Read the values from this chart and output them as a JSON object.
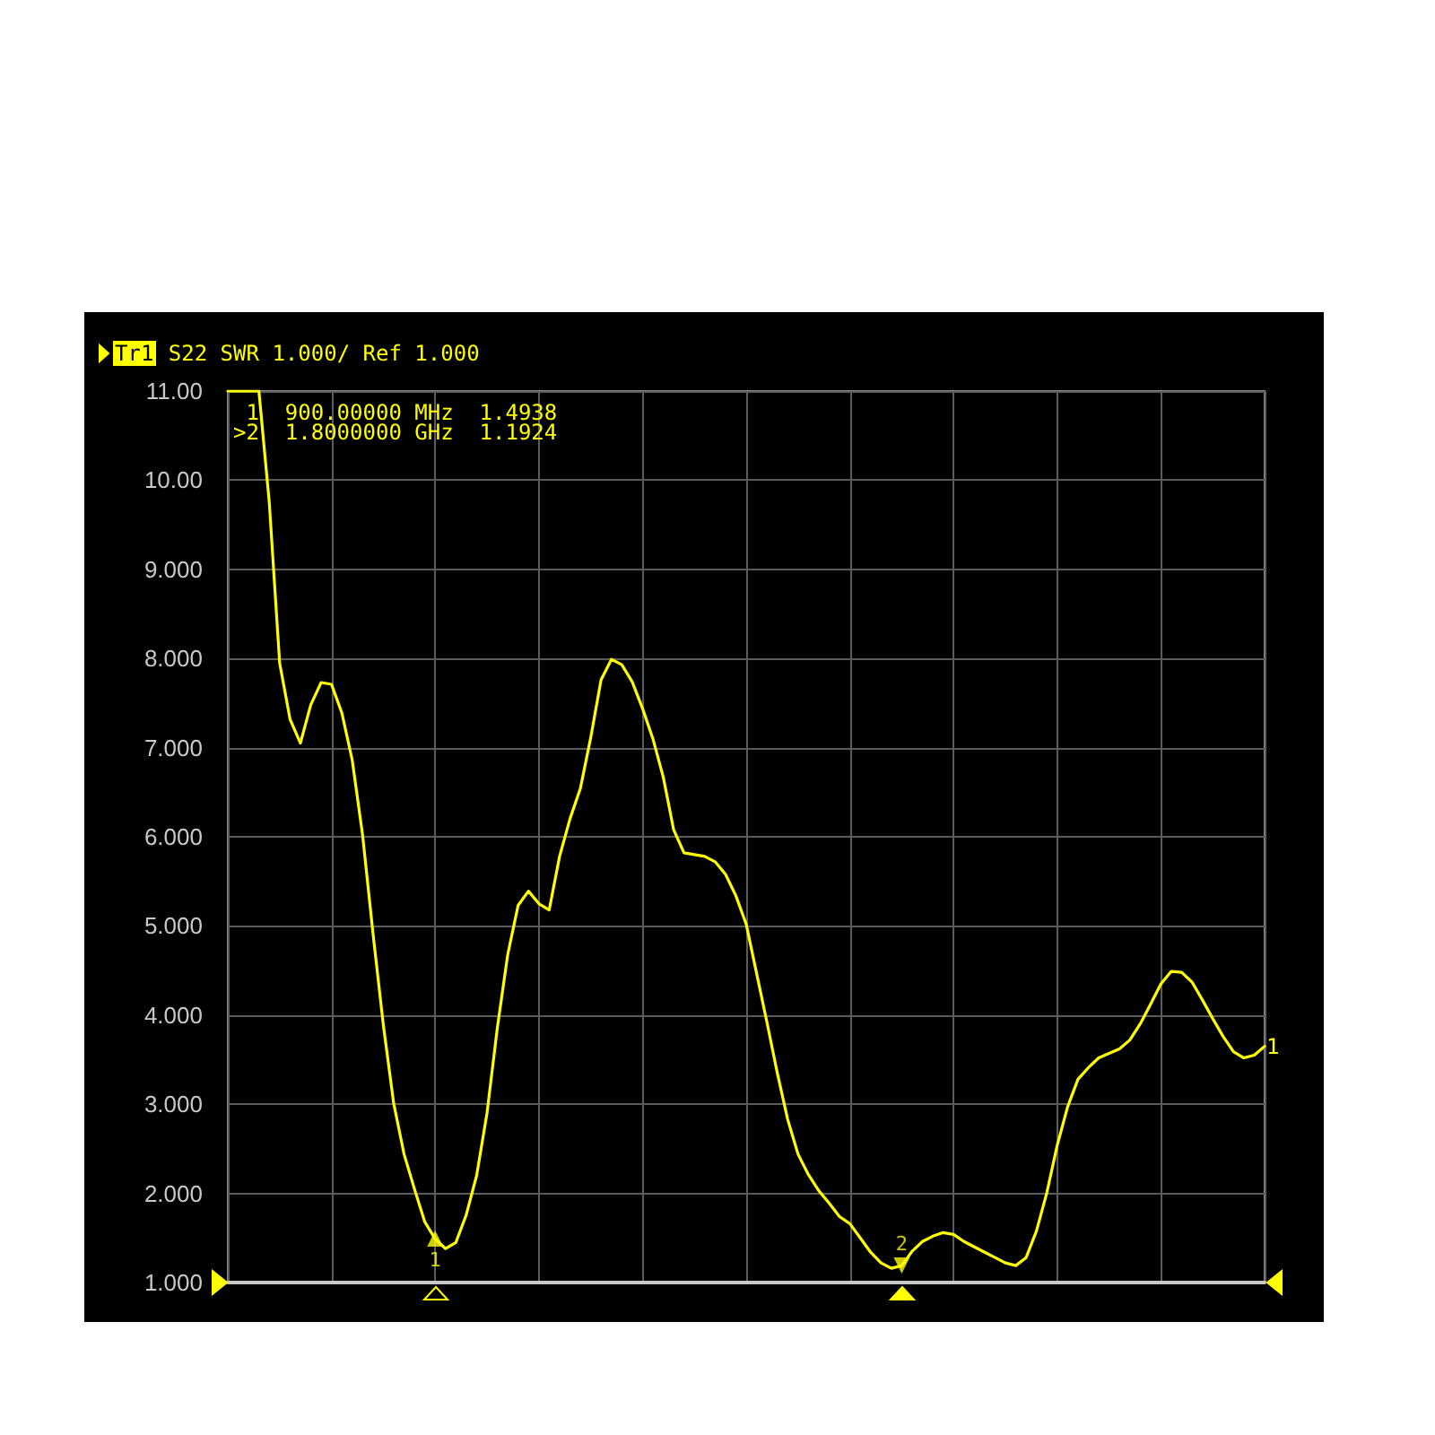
{
  "chart_data": {
    "type": "line",
    "title": "Tr1 S22 SWR 1.000/ Ref 1.000",
    "categories": [
      null,
      null,
      null,
      null,
      null,
      null,
      null,
      null,
      null,
      null,
      null,
      null,
      null,
      null,
      null,
      null,
      null,
      null,
      null,
      null,
      null,
      null,
      null,
      null,
      null,
      null,
      null,
      null,
      null,
      null,
      null,
      null,
      null,
      null,
      null,
      null,
      null,
      null,
      null,
      null,
      null,
      null,
      null,
      null,
      null,
      null,
      null,
      null,
      null,
      null,
      null,
      null,
      null,
      null,
      null,
      null,
      null,
      null,
      null,
      null,
      null,
      null,
      null,
      null,
      null,
      null,
      null,
      null,
      null,
      null,
      null,
      null,
      null,
      null,
      null,
      null,
      null,
      null,
      null,
      null,
      null,
      null,
      null,
      null,
      null,
      null,
      null,
      null,
      null,
      null,
      null,
      null,
      null,
      null,
      null,
      null,
      null,
      null,
      null,
      null,
      null
    ],
    "series": [
      {
        "name": "1",
        "color": "#ffff00",
        "values": [
          11,
          11,
          11,
          11,
          9.75,
          7.95,
          7.32,
          7.05,
          7.48,
          7.73,
          7.71,
          7.39,
          6.86,
          6.02,
          4.92,
          3.89,
          3.01,
          2.44,
          2.05,
          1.68,
          1.49,
          1.38,
          1.45,
          1.76,
          2.2,
          2.9,
          3.86,
          4.68,
          5.23,
          5.39,
          5.25,
          5.18,
          5.78,
          6.2,
          6.54,
          7.11,
          7.76,
          7.99,
          7.93,
          7.74,
          7.44,
          7.1,
          6.67,
          6.08,
          5.82,
          5.8,
          5.78,
          5.72,
          5.58,
          5.34,
          5.02,
          4.47,
          3.92,
          3.35,
          2.83,
          2.44,
          2.21,
          2.03,
          1.89,
          1.74,
          1.66,
          1.5,
          1.34,
          1.22,
          1.16,
          1.19,
          1.35,
          1.46,
          1.52,
          1.56,
          1.54,
          1.46,
          1.4,
          1.34,
          1.28,
          1.22,
          1.19,
          1.28,
          1.58,
          2.01,
          2.54,
          2.97,
          3.28,
          3.41,
          3.52,
          3.57,
          3.62,
          3.72,
          3.9,
          4.12,
          4.35,
          4.49,
          4.48,
          4.37,
          4.17,
          3.96,
          3.76,
          3.59,
          3.52,
          3.55,
          3.65
        ]
      },
      {
        "type": "scatter",
        "name": "1",
        "color": "#ffff00",
        "marker": "triangle",
        "values": [
          null,
          null,
          null,
          null,
          null,
          null,
          null,
          null,
          null,
          null,
          null,
          null,
          null,
          null,
          null,
          null,
          null,
          null,
          null,
          null,
          1.4938,
          null,
          null,
          null,
          null,
          null,
          null,
          null,
          null,
          null,
          null,
          null,
          null,
          null,
          null,
          null,
          null,
          null,
          null,
          null,
          null,
          null,
          null,
          null,
          null,
          null,
          null,
          null,
          null,
          null,
          null,
          null,
          null,
          null,
          null,
          null,
          null,
          null,
          null,
          null,
          null,
          null,
          null,
          null,
          null,
          null,
          null,
          null,
          null,
          null,
          null,
          null,
          null,
          null,
          null,
          null,
          null,
          null,
          null,
          null,
          null,
          null,
          null,
          null,
          null,
          null,
          null,
          null,
          null,
          null,
          null,
          null,
          null,
          null,
          null,
          null,
          null,
          null,
          null,
          null,
          null
        ]
      },
      {
        "type": "scatter",
        "name": "2",
        "color": "#ffff00",
        "marker": "triangle",
        "values": [
          null,
          null,
          null,
          null,
          null,
          null,
          null,
          null,
          null,
          null,
          null,
          null,
          null,
          null,
          null,
          null,
          null,
          null,
          null,
          null,
          null,
          null,
          null,
          null,
          null,
          null,
          null,
          null,
          null,
          null,
          null,
          null,
          null,
          null,
          null,
          null,
          null,
          null,
          null,
          null,
          null,
          null,
          null,
          null,
          null,
          null,
          null,
          null,
          null,
          null,
          null,
          null,
          null,
          null,
          null,
          null,
          null,
          null,
          null,
          null,
          null,
          null,
          null,
          null,
          null,
          1.1924,
          null,
          null,
          null,
          null,
          null,
          null,
          null,
          null,
          null,
          null,
          null,
          null,
          null,
          null,
          null,
          null,
          null,
          null,
          null,
          null,
          null,
          null,
          null,
          null,
          null,
          null,
          null,
          null,
          null,
          null,
          null,
          null,
          null,
          null,
          null
        ]
      }
    ],
    "ylim": [
      1,
      11
    ],
    "yticks": [
      {
        "value": 1,
        "label": "1.000"
      },
      {
        "value": 2,
        "label": "2.000"
      },
      {
        "value": 3,
        "label": "3.000"
      },
      {
        "value": 4,
        "label": "4.000"
      },
      {
        "value": 5,
        "label": "5.000"
      },
      {
        "value": 6,
        "label": "6.000"
      },
      {
        "value": 7,
        "label": "7.000"
      },
      {
        "value": 8,
        "label": "8.000"
      },
      {
        "value": 9,
        "label": "9.000"
      },
      {
        "value": 10,
        "label": "10.00"
      },
      {
        "value": 11,
        "label": "11.00"
      }
    ],
    "grid": true,
    "tick_labels": "y",
    "marker": "none",
    "annotations": [
      "1  900.00000 MHz  1.4938",
      ">2  1.8000000 GHz  1.1924"
    ]
  }
}
